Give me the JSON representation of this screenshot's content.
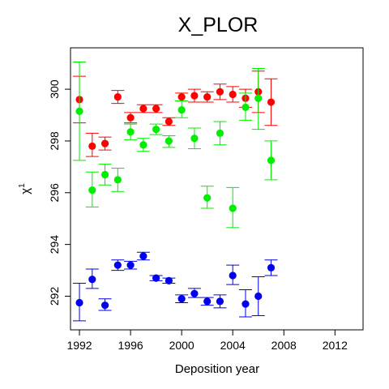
{
  "chart_data": {
    "type": "scatter",
    "title": "X_PLOR",
    "xlabel": "Deposition year",
    "ylabel": "χ",
    "ylabel_superscript": "1",
    "xlim": [
      1991.3,
      2014.2
    ],
    "ylim": [
      290.7,
      301.6
    ],
    "xticks": [
      1992,
      1996,
      2000,
      2004,
      2008,
      2012
    ],
    "yticks": [
      292,
      294,
      296,
      298,
      300
    ],
    "grid": false,
    "legend": "none",
    "series": [
      {
        "color": "#ff0000",
        "points": [
          {
            "x": 1992,
            "y": 299.6,
            "lo": 298.7,
            "hi": 300.5
          },
          {
            "x": 1993,
            "y": 297.8,
            "lo": 297.4,
            "hi": 298.3
          },
          {
            "x": 1994,
            "y": 297.9,
            "lo": 297.65,
            "hi": 298.15
          },
          {
            "x": 1995,
            "y": 299.7,
            "lo": 299.45,
            "hi": 299.95
          },
          {
            "x": 1996,
            "y": 298.9,
            "lo": 298.7,
            "hi": 299.1
          },
          {
            "x": 1997,
            "y": 299.25,
            "lo": 299.1,
            "hi": 299.4
          },
          {
            "x": 1998,
            "y": 299.25,
            "lo": 299.1,
            "hi": 299.4
          },
          {
            "x": 1999,
            "y": 298.75,
            "lo": 298.6,
            "hi": 298.9
          },
          {
            "x": 2000,
            "y": 299.7,
            "lo": 299.55,
            "hi": 299.85
          },
          {
            "x": 2001,
            "y": 299.75,
            "lo": 299.5,
            "hi": 300.0
          },
          {
            "x": 2002,
            "y": 299.7,
            "lo": 299.5,
            "hi": 299.9
          },
          {
            "x": 2003,
            "y": 299.9,
            "lo": 299.6,
            "hi": 300.2
          },
          {
            "x": 2004,
            "y": 299.8,
            "lo": 299.5,
            "hi": 300.1
          },
          {
            "x": 2005,
            "y": 299.65,
            "lo": 299.3,
            "hi": 300.0
          },
          {
            "x": 2006,
            "y": 299.9,
            "lo": 299.1,
            "hi": 300.7
          },
          {
            "x": 2007,
            "y": 299.5,
            "lo": 298.6,
            "hi": 300.4
          }
        ]
      },
      {
        "color": "#00ee00",
        "points": [
          {
            "x": 1992,
            "y": 299.15,
            "lo": 297.25,
            "hi": 301.05
          },
          {
            "x": 1993,
            "y": 296.1,
            "lo": 295.45,
            "hi": 296.8
          },
          {
            "x": 1994,
            "y": 296.7,
            "lo": 296.3,
            "hi": 297.1
          },
          {
            "x": 1995,
            "y": 296.5,
            "lo": 296.05,
            "hi": 296.95
          },
          {
            "x": 1996,
            "y": 298.35,
            "lo": 298.05,
            "hi": 298.65
          },
          {
            "x": 1997,
            "y": 297.85,
            "lo": 297.6,
            "hi": 298.1
          },
          {
            "x": 1998,
            "y": 298.45,
            "lo": 298.25,
            "hi": 298.65
          },
          {
            "x": 1999,
            "y": 298.0,
            "lo": 297.75,
            "hi": 298.2
          },
          {
            "x": 2000,
            "y": 299.2,
            "lo": 298.9,
            "hi": 299.55
          },
          {
            "x": 2001,
            "y": 298.1,
            "lo": 297.7,
            "hi": 298.5
          },
          {
            "x": 2002,
            "y": 295.8,
            "lo": 295.4,
            "hi": 296.25
          },
          {
            "x": 2003,
            "y": 298.3,
            "lo": 297.85,
            "hi": 298.75
          },
          {
            "x": 2004,
            "y": 295.4,
            "lo": 294.65,
            "hi": 296.2
          },
          {
            "x": 2005,
            "y": 299.3,
            "lo": 298.8,
            "hi": 299.85
          },
          {
            "x": 2006,
            "y": 299.65,
            "lo": 298.45,
            "hi": 300.8
          },
          {
            "x": 2007,
            "y": 297.25,
            "lo": 296.5,
            "hi": 298.0
          }
        ]
      },
      {
        "color": "#0000ee",
        "points": [
          {
            "x": 1992,
            "y": 291.75,
            "lo": 291.05,
            "hi": 292.5
          },
          {
            "x": 1993,
            "y": 292.65,
            "lo": 292.3,
            "hi": 293.05
          },
          {
            "x": 1994,
            "y": 291.65,
            "lo": 291.45,
            "hi": 291.9
          },
          {
            "x": 1995,
            "y": 293.2,
            "lo": 293.0,
            "hi": 293.4
          },
          {
            "x": 1996,
            "y": 293.2,
            "lo": 293.05,
            "hi": 293.35
          },
          {
            "x": 1997,
            "y": 293.55,
            "lo": 293.4,
            "hi": 293.7
          },
          {
            "x": 1998,
            "y": 292.7,
            "lo": 292.6,
            "hi": 292.8
          },
          {
            "x": 1999,
            "y": 292.6,
            "lo": 292.5,
            "hi": 292.7
          },
          {
            "x": 2000,
            "y": 291.9,
            "lo": 291.75,
            "hi": 292.05
          },
          {
            "x": 2001,
            "y": 292.1,
            "lo": 291.95,
            "hi": 292.3
          },
          {
            "x": 2002,
            "y": 291.8,
            "lo": 291.65,
            "hi": 291.95
          },
          {
            "x": 2003,
            "y": 291.8,
            "lo": 291.55,
            "hi": 292.05
          },
          {
            "x": 2004,
            "y": 292.8,
            "lo": 292.45,
            "hi": 293.2
          },
          {
            "x": 2005,
            "y": 291.7,
            "lo": 291.2,
            "hi": 292.25
          },
          {
            "x": 2006,
            "y": 292.0,
            "lo": 291.25,
            "hi": 292.75
          },
          {
            "x": 2007,
            "y": 293.1,
            "lo": 292.8,
            "hi": 293.4
          }
        ]
      }
    ]
  }
}
